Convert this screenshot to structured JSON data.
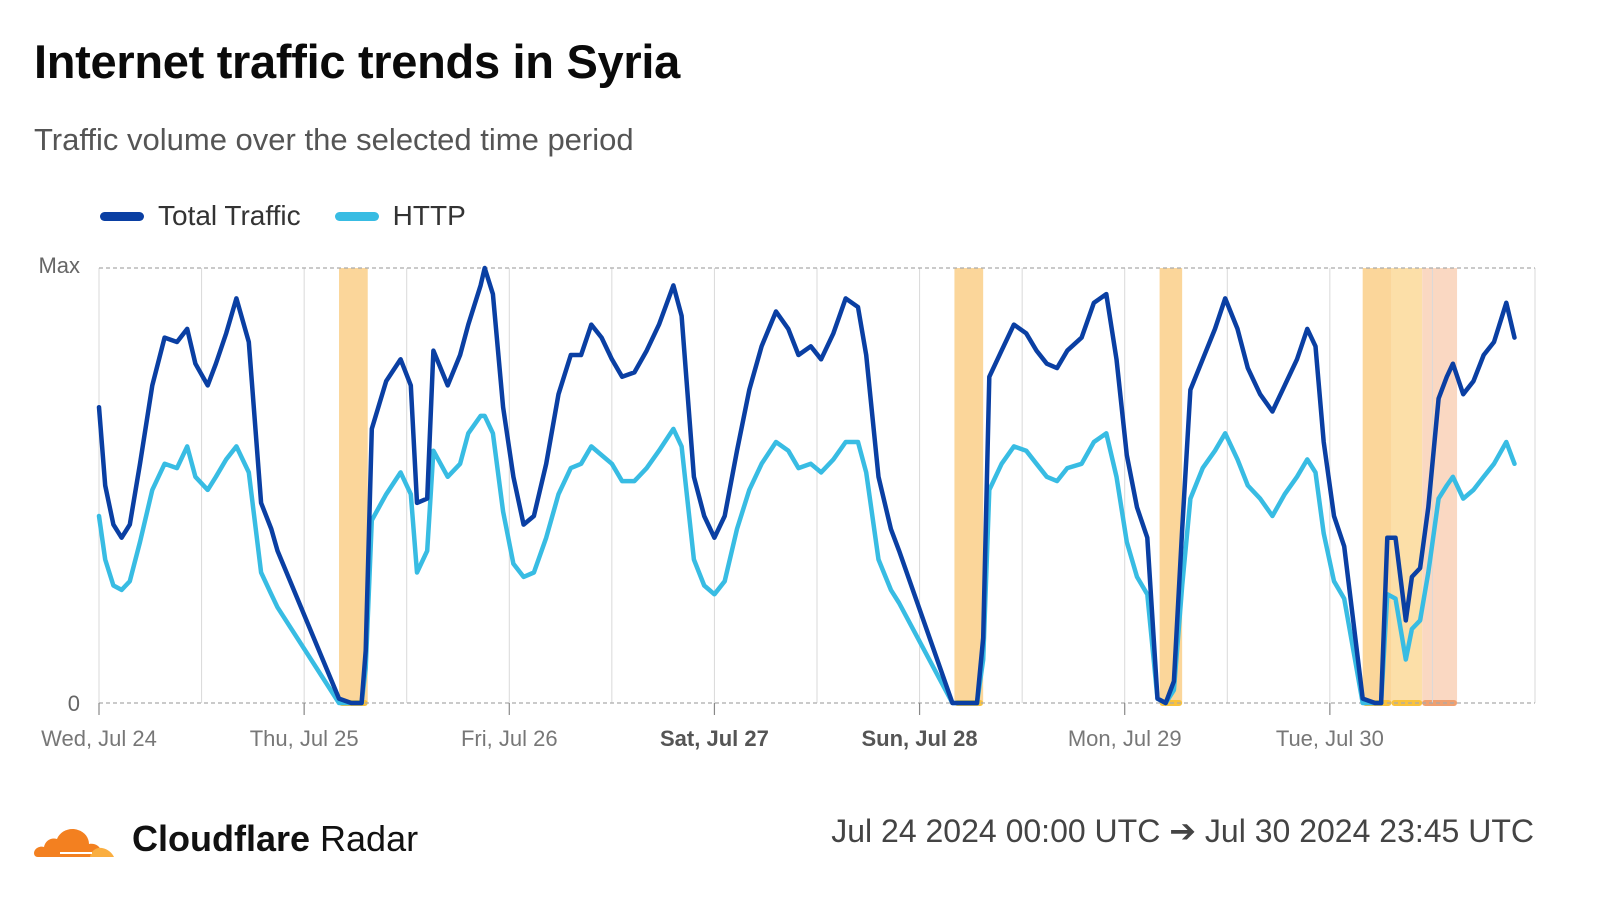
{
  "title": "Internet traffic trends in Syria",
  "subtitle": "Traffic volume over the selected time period",
  "brand": {
    "name_bold": "Cloudflare",
    "name_regular": "Radar"
  },
  "date_range": "Jul 24 2024 00:00 UTC ➔ Jul 30 2024 23:45 UTC",
  "colors": {
    "total": "#0a3fa3",
    "http": "#38bce3",
    "outage": "#fbd28f",
    "outage_dark": "#f8c27a",
    "anomaly": "#f9d4bb",
    "grid": "#d9d9d9"
  },
  "chart_data": {
    "type": "line",
    "x_unit": "days since Wed, Jul 24 00:00 UTC",
    "xlim": [
      0,
      7
    ],
    "ylim": [
      0,
      1
    ],
    "y_tick_labels": [
      "0",
      "Max"
    ],
    "x_ticks": [
      {
        "label": "Wed, Jul 24",
        "day": 0,
        "bold": false
      },
      {
        "label": "Thu, Jul 25",
        "day": 1,
        "bold": false
      },
      {
        "label": "Fri, Jul 26",
        "day": 2,
        "bold": false
      },
      {
        "label": "Sat, Jul 27",
        "day": 3,
        "bold": true
      },
      {
        "label": "Sun, Jul 28",
        "day": 4,
        "bold": true
      },
      {
        "label": "Mon, Jul 29",
        "day": 5,
        "bold": false
      },
      {
        "label": "Tue, Jul 30",
        "day": 6,
        "bold": false
      }
    ],
    "legend": [
      "Total Traffic",
      "HTTP"
    ],
    "outage_bands": [
      {
        "start": 1.17,
        "end": 1.31,
        "kind": "outage"
      },
      {
        "start": 4.17,
        "end": 4.31,
        "kind": "outage"
      },
      {
        "start": 5.17,
        "end": 5.28,
        "kind": "outage"
      },
      {
        "start": 6.16,
        "end": 6.3,
        "kind": "outage"
      },
      {
        "start": 6.3,
        "end": 6.45,
        "kind": "outage_light"
      },
      {
        "start": 6.45,
        "end": 6.62,
        "kind": "anomaly"
      }
    ],
    "series": [
      {
        "name": "Total Traffic",
        "points": [
          [
            0.0,
            0.68
          ],
          [
            0.03,
            0.5
          ],
          [
            0.07,
            0.41
          ],
          [
            0.11,
            0.38
          ],
          [
            0.15,
            0.41
          ],
          [
            0.2,
            0.55
          ],
          [
            0.26,
            0.73
          ],
          [
            0.32,
            0.84
          ],
          [
            0.38,
            0.83
          ],
          [
            0.43,
            0.86
          ],
          [
            0.47,
            0.78
          ],
          [
            0.53,
            0.73
          ],
          [
            0.57,
            0.78
          ],
          [
            0.62,
            0.85
          ],
          [
            0.67,
            0.93
          ],
          [
            0.73,
            0.83
          ],
          [
            0.79,
            0.46
          ],
          [
            0.84,
            0.4
          ],
          [
            0.87,
            0.35
          ],
          [
            1.17,
            0.01
          ],
          [
            1.23,
            0.0
          ],
          [
            1.28,
            0.0
          ],
          [
            1.3,
            0.12
          ],
          [
            1.33,
            0.63
          ],
          [
            1.4,
            0.74
          ],
          [
            1.47,
            0.79
          ],
          [
            1.52,
            0.73
          ],
          [
            1.55,
            0.46
          ],
          [
            1.6,
            0.47
          ],
          [
            1.63,
            0.81
          ],
          [
            1.7,
            0.73
          ],
          [
            1.76,
            0.8
          ],
          [
            1.8,
            0.87
          ],
          [
            1.86,
            0.96
          ],
          [
            1.88,
            1.0
          ],
          [
            1.92,
            0.94
          ],
          [
            1.97,
            0.68
          ],
          [
            2.02,
            0.52
          ],
          [
            2.07,
            0.41
          ],
          [
            2.12,
            0.43
          ],
          [
            2.18,
            0.55
          ],
          [
            2.24,
            0.71
          ],
          [
            2.3,
            0.8
          ],
          [
            2.35,
            0.8
          ],
          [
            2.4,
            0.87
          ],
          [
            2.45,
            0.84
          ],
          [
            2.5,
            0.79
          ],
          [
            2.55,
            0.75
          ],
          [
            2.61,
            0.76
          ],
          [
            2.67,
            0.81
          ],
          [
            2.73,
            0.87
          ],
          [
            2.8,
            0.96
          ],
          [
            2.84,
            0.89
          ],
          [
            2.9,
            0.52
          ],
          [
            2.95,
            0.43
          ],
          [
            3.0,
            0.38
          ],
          [
            3.05,
            0.43
          ],
          [
            3.11,
            0.58
          ],
          [
            3.17,
            0.72
          ],
          [
            3.23,
            0.82
          ],
          [
            3.3,
            0.9
          ],
          [
            3.36,
            0.86
          ],
          [
            3.41,
            0.8
          ],
          [
            3.47,
            0.82
          ],
          [
            3.52,
            0.79
          ],
          [
            3.58,
            0.85
          ],
          [
            3.64,
            0.93
          ],
          [
            3.7,
            0.91
          ],
          [
            3.74,
            0.8
          ],
          [
            3.8,
            0.52
          ],
          [
            3.86,
            0.4
          ],
          [
            3.9,
            0.35
          ],
          [
            4.16,
            0.0
          ],
          [
            4.22,
            0.0
          ],
          [
            4.28,
            0.0
          ],
          [
            4.31,
            0.15
          ],
          [
            4.34,
            0.75
          ],
          [
            4.4,
            0.81
          ],
          [
            4.46,
            0.87
          ],
          [
            4.52,
            0.85
          ],
          [
            4.57,
            0.81
          ],
          [
            4.62,
            0.78
          ],
          [
            4.67,
            0.77
          ],
          [
            4.72,
            0.81
          ],
          [
            4.79,
            0.84
          ],
          [
            4.85,
            0.92
          ],
          [
            4.91,
            0.94
          ],
          [
            4.96,
            0.79
          ],
          [
            5.01,
            0.57
          ],
          [
            5.06,
            0.45
          ],
          [
            5.11,
            0.38
          ],
          [
            5.16,
            0.01
          ],
          [
            5.2,
            0.0
          ],
          [
            5.24,
            0.05
          ],
          [
            5.28,
            0.4
          ],
          [
            5.32,
            0.72
          ],
          [
            5.38,
            0.79
          ],
          [
            5.44,
            0.86
          ],
          [
            5.49,
            0.93
          ],
          [
            5.55,
            0.86
          ],
          [
            5.6,
            0.77
          ],
          [
            5.66,
            0.71
          ],
          [
            5.72,
            0.67
          ],
          [
            5.78,
            0.73
          ],
          [
            5.84,
            0.79
          ],
          [
            5.89,
            0.86
          ],
          [
            5.93,
            0.82
          ],
          [
            5.97,
            0.6
          ],
          [
            6.02,
            0.43
          ],
          [
            6.07,
            0.36
          ],
          [
            6.16,
            0.01
          ],
          [
            6.22,
            0.0
          ],
          [
            6.25,
            0.0
          ],
          [
            6.28,
            0.38
          ],
          [
            6.32,
            0.38
          ],
          [
            6.37,
            0.19
          ],
          [
            6.4,
            0.29
          ],
          [
            6.44,
            0.31
          ],
          [
            6.48,
            0.45
          ],
          [
            6.53,
            0.7
          ],
          [
            6.57,
            0.75
          ],
          [
            6.6,
            0.78
          ],
          [
            6.65,
            0.71
          ],
          [
            6.7,
            0.74
          ],
          [
            6.75,
            0.8
          ],
          [
            6.8,
            0.83
          ],
          [
            6.86,
            0.92
          ],
          [
            6.9,
            0.84
          ]
        ]
      },
      {
        "name": "HTTP",
        "points": [
          [
            0.0,
            0.43
          ],
          [
            0.03,
            0.33
          ],
          [
            0.07,
            0.27
          ],
          [
            0.11,
            0.26
          ],
          [
            0.15,
            0.28
          ],
          [
            0.2,
            0.37
          ],
          [
            0.26,
            0.49
          ],
          [
            0.32,
            0.55
          ],
          [
            0.38,
            0.54
          ],
          [
            0.43,
            0.59
          ],
          [
            0.47,
            0.52
          ],
          [
            0.53,
            0.49
          ],
          [
            0.57,
            0.52
          ],
          [
            0.62,
            0.56
          ],
          [
            0.67,
            0.59
          ],
          [
            0.73,
            0.53
          ],
          [
            0.79,
            0.3
          ],
          [
            0.84,
            0.25
          ],
          [
            0.87,
            0.22
          ],
          [
            1.17,
            0.0
          ],
          [
            1.23,
            0.0
          ],
          [
            1.28,
            0.0
          ],
          [
            1.3,
            0.08
          ],
          [
            1.33,
            0.42
          ],
          [
            1.4,
            0.48
          ],
          [
            1.47,
            0.53
          ],
          [
            1.52,
            0.48
          ],
          [
            1.55,
            0.3
          ],
          [
            1.6,
            0.35
          ],
          [
            1.63,
            0.58
          ],
          [
            1.7,
            0.52
          ],
          [
            1.76,
            0.55
          ],
          [
            1.8,
            0.62
          ],
          [
            1.86,
            0.66
          ],
          [
            1.88,
            0.66
          ],
          [
            1.92,
            0.62
          ],
          [
            1.97,
            0.44
          ],
          [
            2.02,
            0.32
          ],
          [
            2.07,
            0.29
          ],
          [
            2.12,
            0.3
          ],
          [
            2.18,
            0.38
          ],
          [
            2.24,
            0.48
          ],
          [
            2.3,
            0.54
          ],
          [
            2.35,
            0.55
          ],
          [
            2.4,
            0.59
          ],
          [
            2.45,
            0.57
          ],
          [
            2.5,
            0.55
          ],
          [
            2.55,
            0.51
          ],
          [
            2.61,
            0.51
          ],
          [
            2.67,
            0.54
          ],
          [
            2.73,
            0.58
          ],
          [
            2.8,
            0.63
          ],
          [
            2.84,
            0.59
          ],
          [
            2.9,
            0.33
          ],
          [
            2.95,
            0.27
          ],
          [
            3.0,
            0.25
          ],
          [
            3.05,
            0.28
          ],
          [
            3.11,
            0.4
          ],
          [
            3.17,
            0.49
          ],
          [
            3.23,
            0.55
          ],
          [
            3.3,
            0.6
          ],
          [
            3.36,
            0.58
          ],
          [
            3.41,
            0.54
          ],
          [
            3.47,
            0.55
          ],
          [
            3.52,
            0.53
          ],
          [
            3.58,
            0.56
          ],
          [
            3.64,
            0.6
          ],
          [
            3.7,
            0.6
          ],
          [
            3.74,
            0.53
          ],
          [
            3.8,
            0.33
          ],
          [
            3.86,
            0.26
          ],
          [
            3.9,
            0.23
          ],
          [
            4.16,
            0.0
          ],
          [
            4.22,
            0.0
          ],
          [
            4.28,
            0.0
          ],
          [
            4.31,
            0.1
          ],
          [
            4.34,
            0.49
          ],
          [
            4.4,
            0.55
          ],
          [
            4.46,
            0.59
          ],
          [
            4.52,
            0.58
          ],
          [
            4.57,
            0.55
          ],
          [
            4.62,
            0.52
          ],
          [
            4.67,
            0.51
          ],
          [
            4.72,
            0.54
          ],
          [
            4.79,
            0.55
          ],
          [
            4.85,
            0.6
          ],
          [
            4.91,
            0.62
          ],
          [
            4.96,
            0.52
          ],
          [
            5.01,
            0.37
          ],
          [
            5.06,
            0.29
          ],
          [
            5.11,
            0.25
          ],
          [
            5.16,
            0.01
          ],
          [
            5.2,
            0.0
          ],
          [
            5.24,
            0.03
          ],
          [
            5.28,
            0.27
          ],
          [
            5.32,
            0.47
          ],
          [
            5.38,
            0.54
          ],
          [
            5.44,
            0.58
          ],
          [
            5.49,
            0.62
          ],
          [
            5.55,
            0.56
          ],
          [
            5.6,
            0.5
          ],
          [
            5.66,
            0.47
          ],
          [
            5.72,
            0.43
          ],
          [
            5.78,
            0.48
          ],
          [
            5.84,
            0.52
          ],
          [
            5.89,
            0.56
          ],
          [
            5.93,
            0.53
          ],
          [
            5.97,
            0.39
          ],
          [
            6.02,
            0.28
          ],
          [
            6.07,
            0.24
          ],
          [
            6.16,
            0.0
          ],
          [
            6.22,
            0.0
          ],
          [
            6.25,
            0.0
          ],
          [
            6.28,
            0.25
          ],
          [
            6.32,
            0.24
          ],
          [
            6.37,
            0.1
          ],
          [
            6.4,
            0.17
          ],
          [
            6.44,
            0.19
          ],
          [
            6.48,
            0.3
          ],
          [
            6.53,
            0.47
          ],
          [
            6.57,
            0.5
          ],
          [
            6.6,
            0.52
          ],
          [
            6.65,
            0.47
          ],
          [
            6.7,
            0.49
          ],
          [
            6.75,
            0.52
          ],
          [
            6.8,
            0.55
          ],
          [
            6.86,
            0.6
          ],
          [
            6.9,
            0.55
          ]
        ]
      }
    ]
  }
}
